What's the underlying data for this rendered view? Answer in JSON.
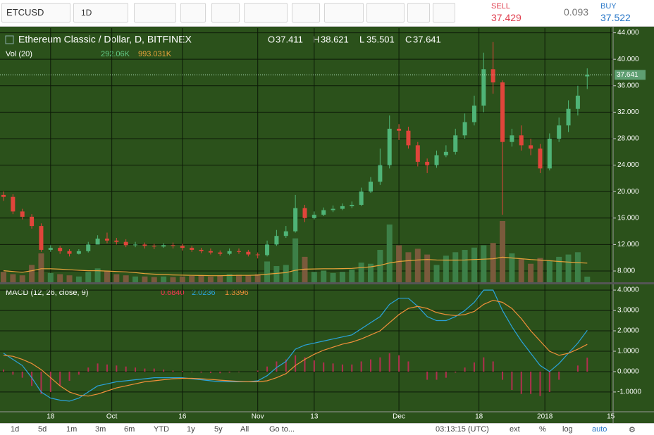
{
  "toolbar": {
    "symbol": "ETCUSD",
    "interval": "1D",
    "sell_label": "SELL",
    "sell_price": 37.429,
    "spread": 0.093,
    "buy_label": "BUY",
    "buy_price": 37.522
  },
  "bottom_bar": {
    "ranges": [
      "1d",
      "5d",
      "1m",
      "3m",
      "6m",
      "YTD",
      "1y",
      "5y",
      "All"
    ],
    "goto": "Go to...",
    "clock": "03:13:15 (UTC)",
    "options": [
      "ext",
      "%",
      "log",
      "auto"
    ]
  },
  "chart_data": {
    "type": "candlestick",
    "title": "Ethereum Classic / Dollar, D, BITFINEX",
    "legend_letters": {
      "open": "O",
      "high": "H",
      "low": "L",
      "close": "C"
    },
    "up_color": "#4fb477",
    "down_color": "#e0453b",
    "grid": true,
    "x": [
      0,
      2,
      4,
      6,
      8,
      10,
      12,
      14,
      16,
      18,
      20,
      22,
      24,
      26,
      28,
      30,
      32,
      34,
      36,
      38,
      40,
      42,
      44,
      46,
      48,
      50,
      52,
      54,
      56,
      58,
      60,
      62,
      64,
      66,
      68,
      70,
      72,
      74,
      76,
      78,
      80,
      82,
      84,
      86,
      88,
      90,
      92,
      94,
      96,
      98,
      100,
      102,
      104,
      106,
      108,
      110,
      112,
      114,
      116,
      118,
      120,
      122,
      124
    ],
    "xlim": [
      -0.75,
      129.5
    ],
    "xticks": [
      {
        "value": 10,
        "label": "18"
      },
      {
        "value": 23,
        "label": "Oct"
      },
      {
        "value": 38,
        "label": "16"
      },
      {
        "value": 54,
        "label": "Nov"
      },
      {
        "value": 66,
        "label": "13"
      },
      {
        "value": 84,
        "label": "Dec"
      },
      {
        "value": 101,
        "label": "18"
      },
      {
        "value": 115,
        "label": "2018"
      },
      {
        "value": 129,
        "label": "15"
      }
    ],
    "ylim": [
      6.3,
      44.7
    ],
    "yticks": [
      {
        "value": 8,
        "label": "8.000"
      },
      {
        "value": 12,
        "label": "12.000"
      },
      {
        "value": 16,
        "label": "16.000"
      },
      {
        "value": 20,
        "label": "20.000"
      },
      {
        "value": 24,
        "label": "24.000"
      },
      {
        "value": 28,
        "label": "28.000"
      },
      {
        "value": 32,
        "label": "32.000"
      },
      {
        "value": 36,
        "label": "36.000"
      },
      {
        "value": 40,
        "label": "40.000"
      },
      {
        "value": 44,
        "label": "44.000"
      }
    ],
    "open": [
      19.5,
      19.2,
      17.0,
      16.2,
      14.8,
      11.2,
      11.5,
      11.0,
      10.6,
      11.0,
      12.0,
      12.9,
      12.6,
      12.4,
      11.9,
      12.0,
      11.8,
      11.7,
      11.9,
      11.8,
      11.5,
      11.2,
      11.0,
      10.8,
      10.6,
      11.0,
      10.9,
      10.5,
      10.4,
      12.0,
      13.3,
      14.0,
      17.5,
      16.0,
      16.5,
      17.2,
      17.4,
      17.8,
      18.0,
      20.0,
      21.5,
      24.0,
      29.5,
      29.2,
      27.0,
      24.5,
      24.0,
      25.5,
      26.0,
      28.5,
      30.5,
      33.0,
      38.5,
      36.5,
      27.5,
      28.5,
      27.0,
      26.5,
      23.5,
      28.0,
      30.0,
      32.5,
      37.411
    ],
    "high": [
      20.0,
      19.6,
      17.4,
      16.6,
      15.2,
      11.9,
      11.8,
      11.3,
      11.3,
      12.4,
      13.4,
      13.8,
      13.0,
      12.8,
      12.4,
      12.3,
      12.1,
      12.2,
      12.3,
      12.1,
      11.8,
      11.5,
      11.4,
      11.1,
      11.4,
      11.4,
      11.2,
      10.8,
      12.6,
      14.2,
      14.8,
      19.5,
      18.0,
      17.0,
      17.6,
      17.9,
      18.2,
      18.5,
      20.6,
      22.2,
      26.5,
      31.5,
      30.2,
      29.8,
      27.5,
      25.0,
      26.2,
      27.0,
      29.5,
      31.8,
      34.5,
      41.0,
      42.6,
      36.8,
      29.5,
      30.0,
      28.0,
      27.2,
      28.8,
      31.2,
      33.8,
      36.0,
      38.621
    ],
    "low": [
      18.6,
      16.6,
      15.8,
      14.4,
      10.9,
      10.9,
      10.6,
      10.2,
      10.5,
      10.8,
      12.3,
      12.2,
      12.0,
      11.6,
      11.6,
      11.4,
      11.3,
      11.5,
      11.4,
      11.1,
      10.9,
      10.7,
      10.5,
      10.3,
      10.4,
      10.6,
      10.2,
      9.9,
      10.2,
      11.8,
      13.0,
      13.8,
      15.4,
      15.8,
      16.3,
      16.9,
      17.2,
      17.5,
      17.8,
      19.8,
      21.0,
      23.5,
      27.8,
      26.5,
      23.8,
      22.8,
      23.6,
      25.2,
      25.6,
      28.0,
      30.0,
      32.0,
      34.8,
      16.5,
      26.8,
      26.2,
      25.5,
      22.8,
      23.2,
      27.5,
      29.0,
      31.5,
      35.501
    ],
    "close": [
      19.2,
      17.0,
      16.2,
      14.8,
      11.2,
      11.5,
      11.0,
      10.6,
      11.0,
      12.0,
      12.9,
      12.6,
      12.4,
      11.9,
      12.0,
      11.8,
      11.7,
      11.9,
      11.8,
      11.5,
      11.2,
      11.0,
      10.8,
      10.6,
      11.0,
      10.9,
      10.5,
      10.4,
      12.0,
      13.3,
      14.0,
      17.5,
      16.0,
      16.5,
      17.2,
      17.4,
      17.8,
      18.0,
      20.0,
      21.5,
      24.0,
      29.5,
      29.2,
      27.0,
      24.5,
      24.0,
      25.5,
      26.0,
      28.5,
      30.5,
      33.0,
      38.5,
      36.5,
      27.5,
      28.5,
      27.0,
      26.5,
      23.5,
      28.0,
      30.0,
      32.5,
      34.5,
      37.641
    ],
    "volume": {
      "title": "Vol (20)",
      "up_color": "#3d8048",
      "down_color": "#7a5a3c",
      "legend_color": "#62c987",
      "values": [
        540,
        420,
        360,
        900,
        1500,
        480,
        420,
        360,
        300,
        540,
        720,
        600,
        420,
        360,
        300,
        300,
        270,
        300,
        270,
        300,
        330,
        360,
        300,
        360,
        420,
        390,
        360,
        420,
        1080,
        840,
        900,
        2280,
        1320,
        540,
        600,
        480,
        540,
        660,
        1020,
        960,
        1680,
        3000,
        1920,
        1560,
        1740,
        1440,
        900,
        1380,
        1560,
        1680,
        1800,
        1920,
        2040,
        3180,
        1500,
        1200,
        960,
        1260,
        1140,
        1320,
        1440,
        1560,
        292.06
      ],
      "value_labels": [
        null,
        null,
        null,
        null,
        null,
        null,
        null,
        null,
        null,
        null,
        null,
        null,
        null,
        null,
        null,
        null,
        null,
        null,
        null,
        null,
        null,
        null,
        null,
        null,
        null,
        null,
        null,
        null,
        null,
        null,
        null,
        null,
        null,
        null,
        null,
        null,
        null,
        null,
        null,
        null,
        null,
        null,
        null,
        null,
        null,
        null,
        null,
        null,
        null,
        null,
        null,
        null,
        null,
        null,
        null,
        null,
        null,
        null,
        null,
        null,
        null,
        null,
        "292.06K"
      ]
    },
    "volume_ma": {
      "color": "#e9a23b",
      "values": [
        600,
        560,
        520,
        600,
        700,
        700,
        680,
        650,
        620,
        600,
        600,
        580,
        560,
        540,
        500,
        450,
        420,
        400,
        380,
        370,
        360,
        350,
        340,
        340,
        350,
        360,
        360,
        370,
        420,
        460,
        500,
        620,
        680,
        690,
        700,
        700,
        710,
        720,
        760,
        800,
        880,
        1000,
        1080,
        1120,
        1160,
        1180,
        1160,
        1150,
        1150,
        1160,
        1180,
        1200,
        1220,
        1300,
        1260,
        1220,
        1180,
        1150,
        1120,
        1080,
        1050,
        1020,
        993.031
      ],
      "value_labels": [
        null,
        null,
        null,
        null,
        null,
        null,
        null,
        null,
        null,
        null,
        null,
        null,
        null,
        null,
        null,
        null,
        null,
        null,
        null,
        null,
        null,
        null,
        null,
        null,
        null,
        null,
        null,
        null,
        null,
        null,
        null,
        null,
        null,
        null,
        null,
        null,
        null,
        null,
        null,
        null,
        null,
        null,
        null,
        null,
        null,
        null,
        null,
        null,
        null,
        null,
        null,
        null,
        null,
        null,
        null,
        null,
        null,
        null,
        null,
        null,
        null,
        null,
        "993.031K"
      ]
    },
    "macd": {
      "title": "MACD (12, 26, close, 9)",
      "ylim": [
        -1.97,
        4.28
      ],
      "yticks": [
        {
          "value": -1,
          "label": "-1.0000"
        },
        {
          "value": 0,
          "label": "0.0000"
        },
        {
          "value": 1,
          "label": "1.0000"
        },
        {
          "value": 2,
          "label": "2.0000"
        },
        {
          "value": 3,
          "label": "3.0000"
        },
        {
          "value": 4,
          "label": "4.0000"
        }
      ],
      "series": [
        {
          "color": "#b0304f",
          "legend_color": "#ff3355",
          "values": [
            0.1,
            -0.15,
            -0.3,
            -0.7,
            -1.1,
            -1.0,
            -0.7,
            -0.45,
            -0.15,
            0.2,
            0.4,
            0.35,
            0.3,
            0.25,
            0.2,
            0.15,
            0.15,
            0.1,
            0.05,
            0.03,
            -0.02,
            -0.05,
            -0.07,
            -0.08,
            -0.05,
            -0.02,
            0,
            0.05,
            0.25,
            0.5,
            0.6,
            0.8,
            0.7,
            0.55,
            0.45,
            0.4,
            0.35,
            0.35,
            0.5,
            0.6,
            0.7,
            0.9,
            0.8,
            0.5,
            0.0,
            -0.4,
            -0.4,
            -0.3,
            -0.05,
            0.2,
            0.45,
            0.7,
            0.5,
            -0.4,
            -0.9,
            -1.1,
            -1.1,
            -1.2,
            -1.0,
            -0.4,
            0.0,
            0.3,
            0.684
          ],
          "value_labels": [
            null,
            null,
            null,
            null,
            null,
            null,
            null,
            null,
            null,
            null,
            null,
            null,
            null,
            null,
            null,
            null,
            null,
            null,
            null,
            null,
            null,
            null,
            null,
            null,
            null,
            null,
            null,
            null,
            null,
            null,
            null,
            null,
            null,
            null,
            null,
            null,
            null,
            null,
            null,
            null,
            null,
            null,
            null,
            null,
            null,
            null,
            null,
            null,
            null,
            null,
            null,
            null,
            null,
            null,
            null,
            null,
            null,
            null,
            null,
            null,
            null,
            null,
            "0.6840"
          ]
        },
        {
          "color": "#2aa3dc",
          "values": [
            0.9,
            0.6,
            0.3,
            -0.3,
            -1.0,
            -1.3,
            -1.4,
            -1.45,
            -1.3,
            -1.0,
            -0.7,
            -0.6,
            -0.5,
            -0.45,
            -0.4,
            -0.35,
            -0.3,
            -0.3,
            -0.3,
            -0.3,
            -0.35,
            -0.4,
            -0.45,
            -0.5,
            -0.5,
            -0.5,
            -0.5,
            -0.45,
            -0.2,
            0.2,
            0.5,
            1.1,
            1.3,
            1.4,
            1.5,
            1.6,
            1.7,
            1.8,
            2.1,
            2.4,
            2.7,
            3.3,
            3.6,
            3.6,
            3.2,
            2.7,
            2.5,
            2.5,
            2.7,
            3.0,
            3.4,
            4.0,
            4.0,
            3.0,
            2.2,
            1.5,
            0.9,
            0.3,
            0.0,
            0.4,
            0.9,
            1.4,
            2.0236
          ]
        },
        {
          "color": "#f0903a",
          "values": [
            0.8,
            0.75,
            0.6,
            0.4,
            0.1,
            -0.3,
            -0.7,
            -1.0,
            -1.15,
            -1.2,
            -1.1,
            -0.95,
            -0.8,
            -0.7,
            -0.6,
            -0.5,
            -0.45,
            -0.4,
            -0.35,
            -0.33,
            -0.33,
            -0.35,
            -0.38,
            -0.42,
            -0.45,
            -0.48,
            -0.5,
            -0.5,
            -0.45,
            -0.3,
            -0.1,
            0.3,
            0.6,
            0.85,
            1.05,
            1.2,
            1.35,
            1.45,
            1.6,
            1.8,
            2.0,
            2.4,
            2.8,
            3.1,
            3.2,
            3.1,
            2.9,
            2.8,
            2.75,
            2.8,
            2.95,
            3.3,
            3.5,
            3.4,
            3.1,
            2.6,
            2.0,
            1.5,
            1.0,
            0.8,
            0.9,
            1.1,
            1.3396
          ]
        }
      ]
    }
  }
}
